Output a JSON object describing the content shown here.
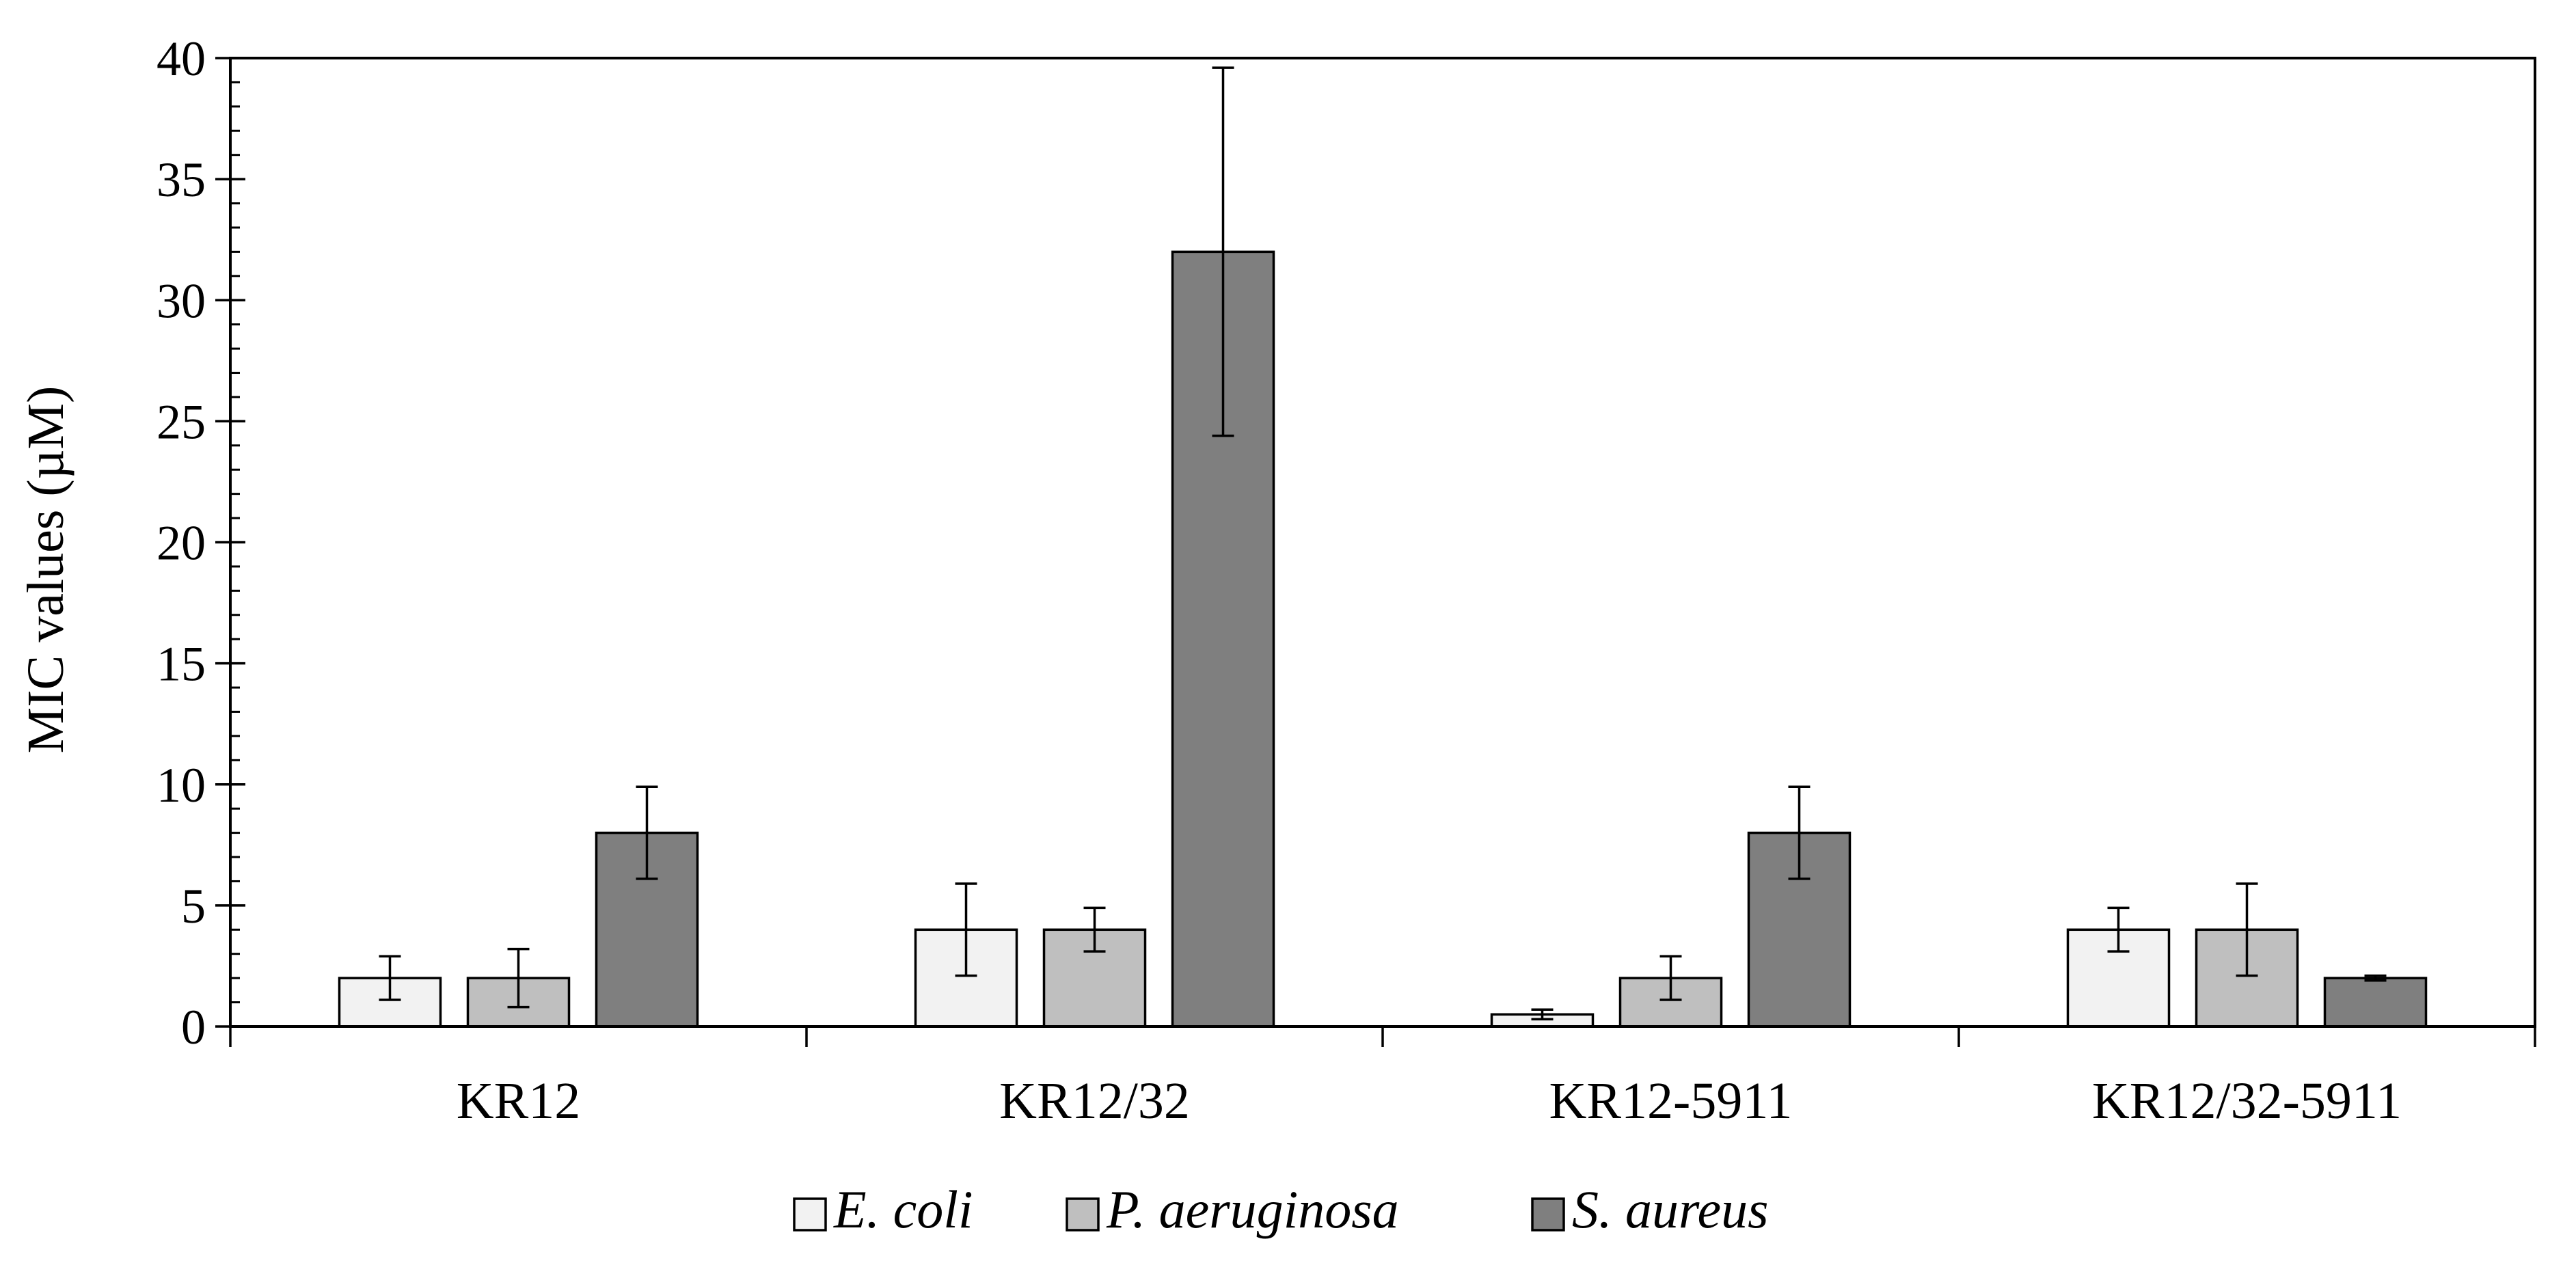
{
  "chart_data": {
    "type": "bar",
    "title": "",
    "xlabel": "",
    "ylabel": "MIC values (µM)",
    "ylim": [
      0,
      40
    ],
    "y_major_ticks": [
      0,
      5,
      10,
      15,
      20,
      25,
      30,
      35,
      40
    ],
    "y_minor_step": 1,
    "grid": false,
    "legend_position": "bottom-center",
    "categories": [
      "KR12",
      "KR12/32",
      "KR12-5911",
      "KR12/32-5911"
    ],
    "series": [
      {
        "name": "E. coli",
        "color": "#f2f2f2",
        "values": [
          2,
          4,
          0.5,
          4
        ],
        "errors": [
          0.9,
          1.9,
          0.2,
          0.9
        ]
      },
      {
        "name": "P. aeruginosa",
        "color": "#bfbfbf",
        "values": [
          2,
          4,
          2,
          4
        ],
        "errors": [
          1.2,
          0.9,
          0.9,
          1.9
        ]
      },
      {
        "name": "S. aureus",
        "color": "#7f7f7f",
        "values": [
          8,
          32,
          8,
          2
        ],
        "errors": [
          1.9,
          7.6,
          1.9,
          0.1
        ]
      }
    ]
  }
}
